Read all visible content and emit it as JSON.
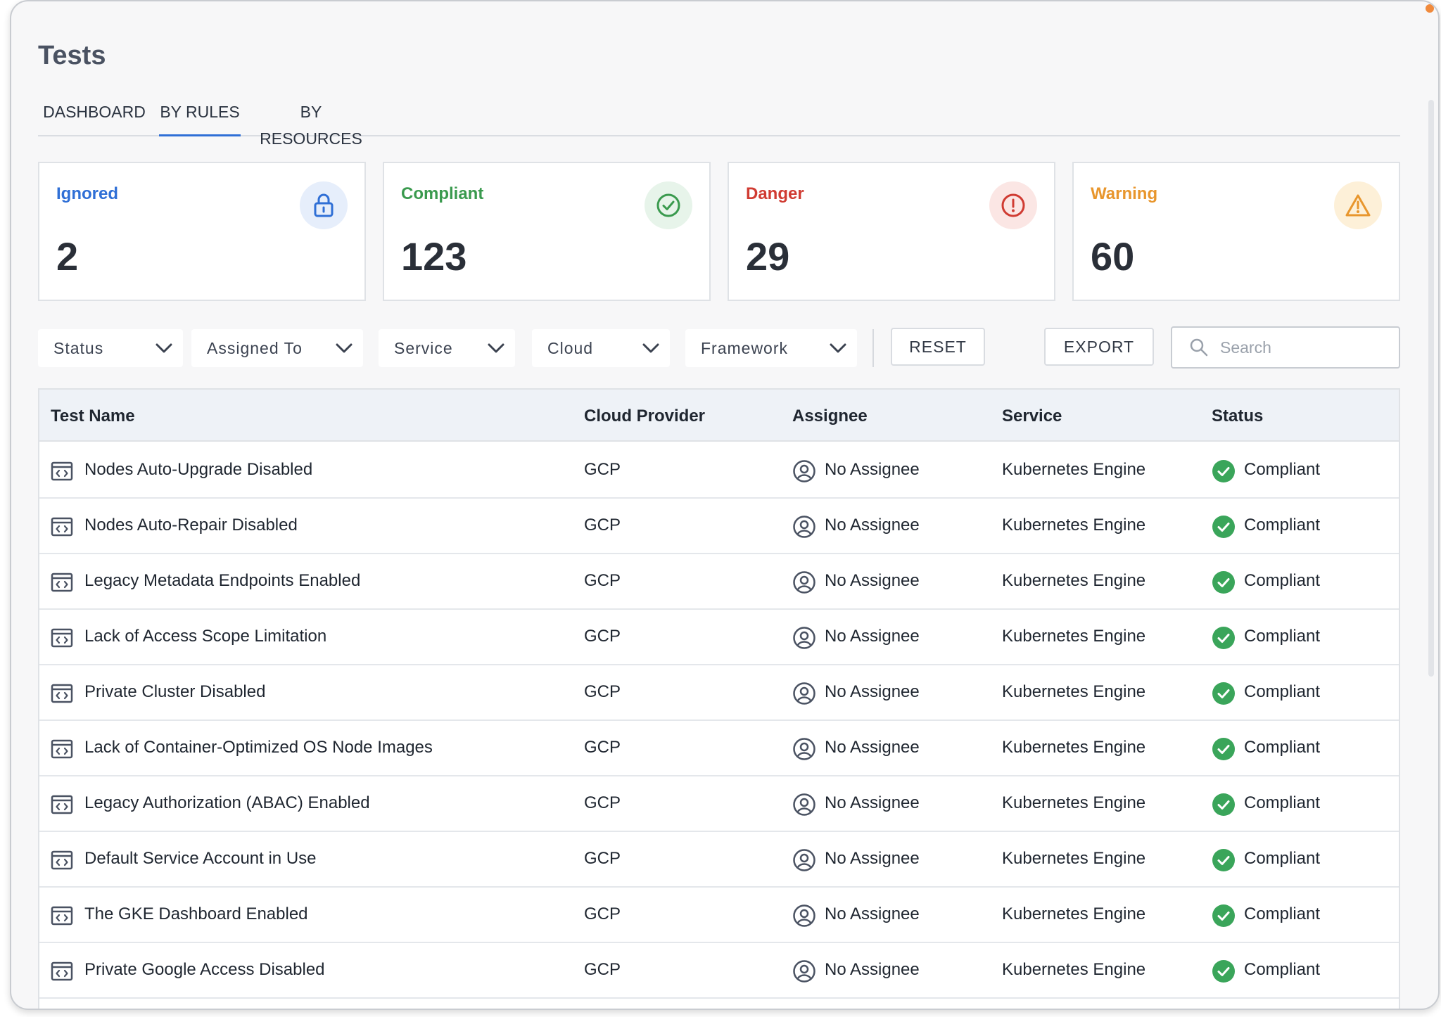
{
  "page": {
    "title": "Tests"
  },
  "tabs": [
    {
      "label": "DASHBOARD"
    },
    {
      "label": "BY RULES"
    },
    {
      "label": "BY RESOURCES"
    }
  ],
  "active_tab": "BY RULES",
  "summary": [
    {
      "label": "Ignored",
      "value": "2",
      "icon": "lock-icon",
      "color": "#2f6fd6",
      "bg": "#e6eefb"
    },
    {
      "label": "Compliant",
      "value": "123",
      "icon": "check-circle-icon",
      "color": "#3a9a4e",
      "bg": "#e7f4ea"
    },
    {
      "label": "Danger",
      "value": "29",
      "icon": "alert-circle-icon",
      "color": "#d03b32",
      "bg": "#fbe6e4"
    },
    {
      "label": "Warning",
      "value": "60",
      "icon": "warning-triangle-icon",
      "color": "#e8962d",
      "bg": "#fdf0d8"
    }
  ],
  "filters": [
    {
      "label": "Status"
    },
    {
      "label": "Assigned To"
    },
    {
      "label": "Service"
    },
    {
      "label": "Cloud"
    },
    {
      "label": "Framework"
    }
  ],
  "actions": {
    "reset_label": "RESET",
    "export_label": "EXPORT"
  },
  "search": {
    "placeholder": "Search",
    "value": ""
  },
  "table": {
    "columns": [
      "Test Name",
      "Cloud Provider",
      "Assignee",
      "Service",
      "Status"
    ],
    "rows": [
      {
        "name": "Nodes Auto-Upgrade Disabled",
        "cloud": "GCP",
        "assignee": "No Assignee",
        "service": "Kubernetes Engine",
        "status": "Compliant"
      },
      {
        "name": "Nodes Auto-Repair Disabled",
        "cloud": "GCP",
        "assignee": "No Assignee",
        "service": "Kubernetes Engine",
        "status": "Compliant"
      },
      {
        "name": "Legacy Metadata Endpoints Enabled",
        "cloud": "GCP",
        "assignee": "No Assignee",
        "service": "Kubernetes Engine",
        "status": "Compliant"
      },
      {
        "name": "Lack of Access Scope Limitation",
        "cloud": "GCP",
        "assignee": "No Assignee",
        "service": "Kubernetes Engine",
        "status": "Compliant"
      },
      {
        "name": "Private Cluster Disabled",
        "cloud": "GCP",
        "assignee": "No Assignee",
        "service": "Kubernetes Engine",
        "status": "Compliant"
      },
      {
        "name": "Lack of Container-Optimized OS Node Images",
        "cloud": "GCP",
        "assignee": "No Assignee",
        "service": "Kubernetes Engine",
        "status": "Compliant"
      },
      {
        "name": "Legacy Authorization (ABAC) Enabled",
        "cloud": "GCP",
        "assignee": "No Assignee",
        "service": "Kubernetes Engine",
        "status": "Compliant"
      },
      {
        "name": "Default Service Account in Use",
        "cloud": "GCP",
        "assignee": "No Assignee",
        "service": "Kubernetes Engine",
        "status": "Compliant"
      },
      {
        "name": "The GKE Dashboard Enabled",
        "cloud": "GCP",
        "assignee": "No Assignee",
        "service": "Kubernetes Engine",
        "status": "Compliant"
      },
      {
        "name": "Private Google Access Disabled",
        "cloud": "GCP",
        "assignee": "No Assignee",
        "service": "Kubernetes Engine",
        "status": "Compliant"
      }
    ],
    "status_color": "#3aa55a"
  }
}
